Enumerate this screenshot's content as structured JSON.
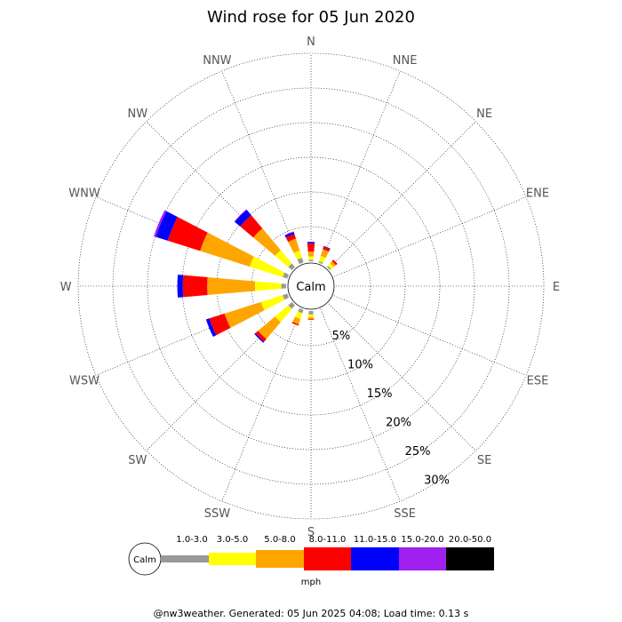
{
  "chart_data": {
    "type": "wind-rose",
    "title": "Wind rose for 05 Jun 2020",
    "directions": [
      "N",
      "NNE",
      "NE",
      "ENE",
      "E",
      "ESE",
      "SE",
      "SSE",
      "S",
      "SSW",
      "SW",
      "WSW",
      "W",
      "WNW",
      "NW",
      "NNW"
    ],
    "radial_ticks": [
      "5%",
      "10%",
      "15%",
      "20%",
      "25%",
      "30%"
    ],
    "radial_tick_values": [
      5,
      10,
      15,
      20,
      25,
      30
    ],
    "r_max": 30,
    "calm_label": "Calm",
    "bins": [
      {
        "label": "1.0-3.0",
        "color": "#999999"
      },
      {
        "label": "3.0-5.0",
        "color": "#ffff00"
      },
      {
        "label": "5.0-8.0",
        "color": "#ffa500"
      },
      {
        "label": "8.0-11.0",
        "color": "#ff0000"
      },
      {
        "label": "11.0-15.0",
        "color": "#0000ff"
      },
      {
        "label": "15.0-20.0",
        "color": "#a020f0"
      },
      {
        "label": "20.0-50.0",
        "color": "#000000"
      }
    ],
    "calm_color": "#999999",
    "units": "mph",
    "series": [
      {
        "direction": "N",
        "values": [
          0.2,
          0.5,
          0.7,
          1.2,
          0.2,
          0,
          0
        ]
      },
      {
        "direction": "NNE",
        "values": [
          0.2,
          0.8,
          1.0,
          0.4,
          0.1,
          0,
          0
        ]
      },
      {
        "direction": "NE",
        "values": [
          0.2,
          0.5,
          0.4,
          0.3,
          0,
          0,
          0
        ]
      },
      {
        "direction": "ENE",
        "values": [
          0,
          0,
          0,
          0,
          0,
          0,
          0
        ]
      },
      {
        "direction": "E",
        "values": [
          0,
          0,
          0,
          0,
          0,
          0,
          0
        ]
      },
      {
        "direction": "ESE",
        "values": [
          0,
          0,
          0,
          0,
          0,
          0,
          0
        ]
      },
      {
        "direction": "SE",
        "values": [
          0,
          0,
          0,
          0,
          0,
          0,
          0
        ]
      },
      {
        "direction": "SSE",
        "values": [
          0,
          0,
          0,
          0,
          0,
          0,
          0
        ]
      },
      {
        "direction": "S",
        "values": [
          0.5,
          0.4,
          0.3,
          0.1,
          0,
          0,
          0
        ]
      },
      {
        "direction": "SSW",
        "values": [
          0.5,
          0.9,
          0.8,
          0.2,
          0,
          0,
          0
        ]
      },
      {
        "direction": "SW",
        "values": [
          0.7,
          2.5,
          3.2,
          0.5,
          0.2,
          0,
          0
        ]
      },
      {
        "direction": "WSW",
        "values": [
          0.7,
          3.3,
          5.5,
          2.3,
          0.5,
          0,
          0
        ]
      },
      {
        "direction": "W",
        "values": [
          0.7,
          3.8,
          6.9,
          3.5,
          0.8,
          0,
          0
        ]
      },
      {
        "direction": "WNW",
        "values": [
          0.7,
          5.0,
          7.5,
          4.9,
          1.8,
          0.3,
          0
        ]
      },
      {
        "direction": "NW",
        "values": [
          0.7,
          2.5,
          4.1,
          2.5,
          1.0,
          0.1,
          0
        ]
      },
      {
        "direction": "NNW",
        "values": [
          0.7,
          1.1,
          1.8,
          0.7,
          0.3,
          0.1,
          0
        ]
      }
    ]
  },
  "footer": {
    "text": "@nw3weather. Generated: 05 Jun 2025 04:08; Load time: 0.13 s"
  }
}
